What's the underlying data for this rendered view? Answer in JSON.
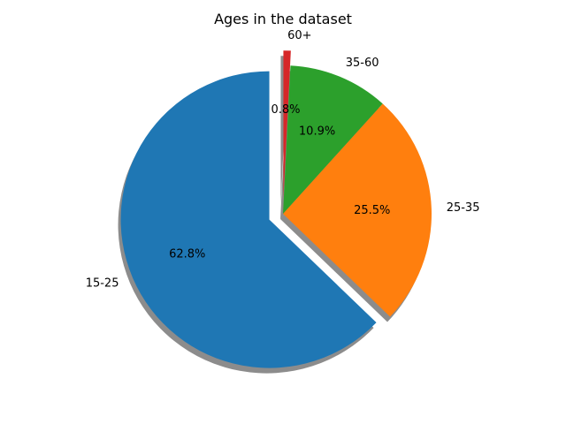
{
  "chart_data": {
    "type": "pie",
    "title": "Ages in the dataset",
    "categories": [
      "15-25",
      "25-35",
      "35-60",
      "60+"
    ],
    "values": [
      62.8,
      25.5,
      10.9,
      0.8
    ],
    "value_labels": [
      "62.8%",
      "25.5%",
      "10.9%",
      "0.8%"
    ],
    "colors": [
      "#1f77b4",
      "#ff7f0e",
      "#2ca02c",
      "#d62728"
    ],
    "exploded": [
      true,
      false,
      false,
      true
    ],
    "start_angle_deg": 90,
    "direction": "counterclockwise",
    "shadow": true,
    "legend": "none"
  }
}
